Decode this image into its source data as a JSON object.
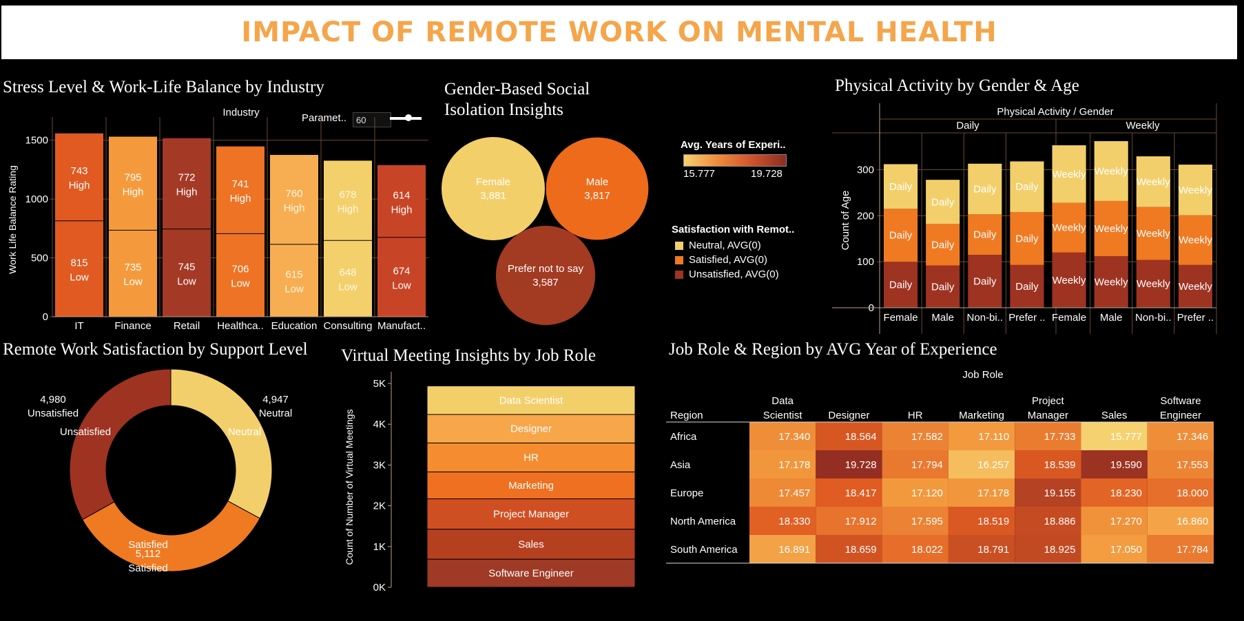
{
  "title": "IMPACT OF REMOTE WORK ON MENTAL HEALTH",
  "colors": {
    "neutral": "#f2cf6a",
    "satisfied": "#f07a22",
    "unsatisfied": "#9e3322",
    "title_text": "#f5a54a"
  },
  "parameter": {
    "label": "Paramet..",
    "value": "60"
  },
  "chart_data": [
    {
      "type": "bar",
      "title": "Stress Level &  Work-Life Balance by Industry",
      "header": "Industry",
      "ylabel": "Work Life Balance Rating",
      "ylim": [
        0,
        1650
      ],
      "yticks": [
        "0",
        "500",
        "1000",
        "1500"
      ],
      "categories": [
        "IT",
        "Finance",
        "Retail",
        "Healthca..",
        "Education",
        "Consulting",
        "Manufact.."
      ],
      "series": [
        {
          "name": "Low",
          "values": [
            815,
            735,
            745,
            706,
            615,
            648,
            674
          ]
        },
        {
          "name": "High",
          "values": [
            743,
            795,
            772,
            741,
            760,
            678,
            614
          ]
        }
      ],
      "bar_colors": [
        "#e05a22",
        "#f59a3c",
        "#a43a25",
        "#ee7324",
        "#f7ae52",
        "#f3d06c",
        "#c84426"
      ]
    },
    {
      "type": "bubble",
      "title_lines": [
        "Gender-Based Social",
        "Isolation Insights"
      ],
      "categories": [
        "Female",
        "Male",
        "Prefer not to say"
      ],
      "values": [
        3881,
        3817,
        3587
      ],
      "labels": [
        "3,881",
        "3,817",
        "3,587"
      ],
      "colors": [
        "#f3cf6a",
        "#ee6b1c",
        "#a33a22"
      ]
    },
    {
      "type": "bar",
      "title": "Physical Activity by Gender & Age",
      "header": "Physical Activity  /  Gender",
      "ylabel": "Count of Age",
      "ylim": [
        0,
        380
      ],
      "yticks": [
        "0",
        "100",
        "200",
        "300"
      ],
      "groups": [
        "Daily",
        "Weekly"
      ],
      "categories": [
        "Female",
        "Male",
        "Non-bi..",
        "Prefer ..",
        "Female",
        "Male",
        "Non-bi..",
        "Prefer .."
      ],
      "series": [
        {
          "name": "Unsatisfied, AVG(0)",
          "values": [
            100,
            92,
            115,
            93,
            120,
            112,
            104,
            93
          ]
        },
        {
          "name": "Satisfied, AVG(0)",
          "values": [
            115,
            90,
            88,
            115,
            108,
            120,
            115,
            108
          ]
        },
        {
          "name": "Neutral, AVG(0)",
          "values": [
            97,
            96,
            110,
            110,
            125,
            130,
            110,
            110
          ]
        }
      ]
    },
    {
      "type": "pie",
      "title": "Remote Work Satisfaction by Support Level",
      "categories": [
        "Neutral",
        "Satisfied",
        "Unsatisfied"
      ],
      "values": [
        4947,
        5112,
        4980
      ],
      "labels": [
        "4,947",
        "5,112",
        "4,980"
      ]
    },
    {
      "type": "bar",
      "title": "Virtual Meeting Insights  by Job Role",
      "ylabel": "Count of Number of Virtual Meetings",
      "ylim": [
        0,
        5000
      ],
      "yticks": [
        "0K",
        "1K",
        "2K",
        "3K",
        "4K",
        "5K"
      ],
      "categories": [
        "Software Engineer",
        "Sales",
        "Project Manager",
        "Marketing",
        "HR",
        "Designer",
        "Data Scientist"
      ],
      "values": [
        690,
        735,
        745,
        660,
        710,
        700,
        700
      ],
      "colors": [
        "#9e3a25",
        "#b5401f",
        "#d04f22",
        "#ee7020",
        "#f58c30",
        "#f7a64a",
        "#f3cf6a"
      ]
    },
    {
      "type": "heatmap",
      "title": "Job Role & Region  by AVG Year of Experience",
      "header": "Job Role",
      "row_header": "Region",
      "columns": [
        [
          "Data",
          "Scientist"
        ],
        [
          "",
          "Designer"
        ],
        [
          "",
          "HR"
        ],
        [
          "",
          "Marketing"
        ],
        [
          "Project",
          "Manager"
        ],
        [
          "",
          "Sales"
        ],
        [
          "Software",
          "Engineer"
        ]
      ],
      "rows": [
        "Africa",
        "Asia",
        "Europe",
        "North America",
        "South America"
      ],
      "values": [
        [
          17.34,
          18.564,
          17.582,
          17.11,
          17.733,
          15.777,
          17.346
        ],
        [
          17.178,
          19.728,
          17.794,
          16.257,
          18.539,
          19.59,
          17.553
        ],
        [
          17.457,
          18.417,
          17.12,
          17.178,
          19.155,
          18.23,
          18.0
        ],
        [
          18.33,
          17.912,
          17.595,
          18.519,
          18.886,
          17.27,
          16.86
        ],
        [
          16.891,
          18.659,
          18.022,
          18.791,
          18.925,
          17.05,
          17.784
        ]
      ],
      "labels": [
        [
          "17.340",
          "18.564",
          "17.582",
          "17.110",
          "17.733",
          "15.777",
          "17.346"
        ],
        [
          "17.178",
          "19.728",
          "17.794",
          "16.257",
          "18.539",
          "19.590",
          "17.553"
        ],
        [
          "17.457",
          "18.417",
          "17.120",
          "17.178",
          "19.155",
          "18.230",
          "18.000"
        ],
        [
          "18.330",
          "17.912",
          "17.595",
          "18.519",
          "18.886",
          "17.270",
          "16.860"
        ],
        [
          "16.891",
          "18.659",
          "18.022",
          "18.791",
          "18.925",
          "17.050",
          "17.784"
        ]
      ],
      "legend_title": "Avg. Years of Experi..",
      "legend_min": "15.777",
      "legend_max": "19.728"
    }
  ],
  "satisfaction_legend": {
    "title": "Satisfaction with Remot..",
    "items": [
      "Neutral, AVG(0)",
      "Satisfied, AVG(0)",
      "Unsatisfied, AVG(0)"
    ]
  }
}
